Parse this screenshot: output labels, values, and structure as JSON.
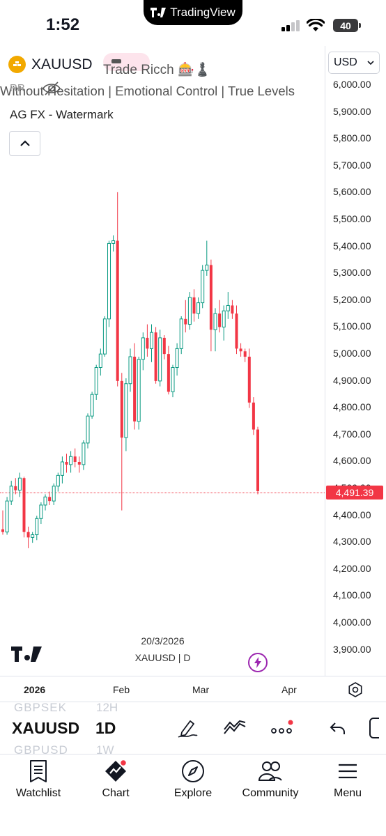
{
  "status_bar": {
    "time": "1:52",
    "battery": "40",
    "app_badge": "TradingView"
  },
  "legend": {
    "symbol": "XAUUSD",
    "indicator_name": "Trade Ricch 🎰♟️",
    "indicator_desc": "Without Hesitation | Emotional Control | True Levels",
    "watermark": "AG FX - Watermark",
    "overlay_text": "RR"
  },
  "price_axis": {
    "currency": "USD",
    "labels": [
      "6,000.00",
      "5,900.00",
      "5,800.00",
      "5,700.00",
      "5,600.00",
      "5,500.00",
      "5,400.00",
      "5,300.00",
      "5,200.00",
      "5,100.00",
      "5,000.00",
      "4,900.00",
      "4,800.00",
      "4,700.00",
      "4,600.00",
      "4,500.00",
      "4,400.00",
      "4,300.00",
      "4,200.00",
      "4,100.00",
      "4,000.00",
      "3,900.00"
    ],
    "last_price": "4,491.39"
  },
  "chart_info": {
    "date": "20/3/2026",
    "series": "XAUUSD | D"
  },
  "time_axis": {
    "labels": [
      "2026",
      "Feb",
      "Mar",
      "Apr"
    ]
  },
  "chart_data": {
    "type": "candlestick",
    "symbol": "XAUUSD",
    "interval": "D",
    "ylim": [
      3880,
      6040
    ],
    "last_price": 4491.39,
    "up_color": "#089981",
    "down_color": "#f23645",
    "candles": [
      [
        4350,
        4420,
        4330,
        4340
      ],
      [
        4340,
        4470,
        4330,
        4455
      ],
      [
        4455,
        4530,
        4440,
        4510
      ],
      [
        4510,
        4540,
        4480,
        4495
      ],
      [
        4495,
        4560,
        4470,
        4540
      ],
      [
        4540,
        4545,
        4320,
        4340
      ],
      [
        4340,
        4360,
        4280,
        4320
      ],
      [
        4320,
        4340,
        4300,
        4330
      ],
      [
        4330,
        4400,
        4310,
        4390
      ],
      [
        4390,
        4450,
        4370,
        4440
      ],
      [
        4440,
        4480,
        4420,
        4470
      ],
      [
        4470,
        4490,
        4440,
        4455
      ],
      [
        4455,
        4520,
        4440,
        4510
      ],
      [
        4510,
        4560,
        4490,
        4550
      ],
      [
        4550,
        4620,
        4520,
        4600
      ],
      [
        4600,
        4630,
        4560,
        4590
      ],
      [
        4590,
        4640,
        4560,
        4620
      ],
      [
        4620,
        4650,
        4580,
        4600
      ],
      [
        4600,
        4620,
        4560,
        4590
      ],
      [
        4590,
        4680,
        4570,
        4670
      ],
      [
        4670,
        4780,
        4650,
        4770
      ],
      [
        4770,
        4860,
        4760,
        4850
      ],
      [
        4850,
        4960,
        4830,
        4950
      ],
      [
        4950,
        5020,
        4920,
        5000
      ],
      [
        5000,
        5140,
        4990,
        5130
      ],
      [
        5130,
        5420,
        5100,
        5410
      ],
      [
        5410,
        5440,
        5380,
        5420
      ],
      [
        5420,
        5600,
        4880,
        4900
      ],
      [
        4900,
        4930,
        4420,
        4690
      ],
      [
        4690,
        4910,
        4640,
        4890
      ],
      [
        4890,
        5020,
        4860,
        4990
      ],
      [
        4990,
        5040,
        4720,
        4750
      ],
      [
        4750,
        4990,
        4720,
        4980
      ],
      [
        4980,
        5080,
        4940,
        5060
      ],
      [
        5060,
        5110,
        4990,
        5020
      ],
      [
        5020,
        5110,
        4970,
        5080
      ],
      [
        5080,
        5100,
        4890,
        4900
      ],
      [
        4900,
        5090,
        4880,
        5060
      ],
      [
        5060,
        5070,
        4980,
        5000
      ],
      [
        5000,
        5030,
        4850,
        4860
      ],
      [
        4860,
        4960,
        4840,
        4950
      ],
      [
        4950,
        5040,
        4920,
        5020
      ],
      [
        5020,
        5140,
        5000,
        5130
      ],
      [
        5130,
        5200,
        5080,
        5110
      ],
      [
        5110,
        5230,
        5090,
        5210
      ],
      [
        5210,
        5240,
        5120,
        5150
      ],
      [
        5150,
        5210,
        5130,
        5190
      ],
      [
        5190,
        5330,
        5170,
        5310
      ],
      [
        5310,
        5420,
        5290,
        5330
      ],
      [
        5330,
        5350,
        5010,
        5090
      ],
      [
        5090,
        5170,
        5010,
        5150
      ],
      [
        5150,
        5200,
        5080,
        5100
      ],
      [
        5100,
        5180,
        5050,
        5160
      ],
      [
        5160,
        5230,
        5130,
        5180
      ],
      [
        5180,
        5200,
        5130,
        5150
      ],
      [
        5150,
        5180,
        5000,
        5020
      ],
      [
        5020,
        5040,
        4990,
        5010
      ],
      [
        5010,
        5020,
        4970,
        4990
      ],
      [
        4990,
        5020,
        4800,
        4820
      ],
      [
        4820,
        4840,
        4700,
        4720
      ],
      [
        4720,
        4730,
        4480,
        4491.39
      ]
    ]
  },
  "toolbar": {
    "symbol": "XAUUSD",
    "interval": "1D",
    "ghost_symbols": [
      "GBPSEK",
      "GBPUSD"
    ],
    "ghost_intervals": [
      "12H",
      "1W"
    ]
  },
  "nav": {
    "watchlist": "Watchlist",
    "chart": "Chart",
    "explore": "Explore",
    "community": "Community",
    "menu": "Menu"
  }
}
